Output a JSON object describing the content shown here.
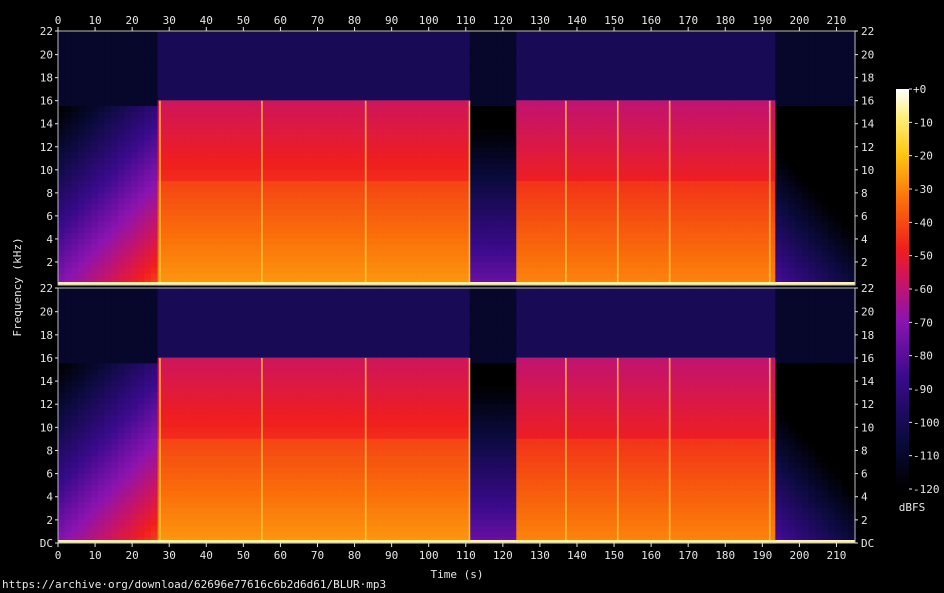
{
  "chart_data": {
    "type": "heatmap",
    "title": "",
    "xlabel": "Time (s)",
    "ylabel": "Frequency (kHz)",
    "colorbar_label": "dBFS",
    "x_range": [
      0,
      215
    ],
    "x_ticks": [
      0,
      10,
      20,
      30,
      40,
      50,
      60,
      70,
      80,
      90,
      100,
      110,
      120,
      130,
      140,
      150,
      160,
      170,
      180,
      190,
      200,
      210
    ],
    "y_range_khz": [
      0,
      22.05
    ],
    "y_ticks_top": [
      "2",
      "4",
      "6",
      "8",
      "10",
      "12",
      "14",
      "16",
      "18",
      "20",
      "22"
    ],
    "y_ticks_bottom": [
      "DC",
      "2",
      "4",
      "6",
      "8",
      "10",
      "12",
      "14",
      "16",
      "18",
      "20",
      "22"
    ],
    "colorbar_range": [
      -120,
      0
    ],
    "colorbar_ticks": [
      "+0",
      "-10",
      "-20",
      "-30",
      "-40",
      "-50",
      "-60",
      "-70",
      "-80",
      "-90",
      "-100",
      "-110",
      "-120"
    ],
    "channels": 2,
    "grid": false,
    "segments": [
      {
        "start": 0,
        "end": 27,
        "cutoff_khz": 15.6,
        "level_db": -85
      },
      {
        "start": 27,
        "end": 55,
        "cutoff_khz": 15.8,
        "level_db": -45
      },
      {
        "start": 55,
        "end": 111,
        "cutoff_khz": 15.8,
        "level_db": -45
      },
      {
        "start": 111,
        "end": 124,
        "cutoff_khz": 15.6,
        "level_db": -90
      },
      {
        "start": 124,
        "end": 193,
        "cutoff_khz": 15.8,
        "level_db": -48
      },
      {
        "start": 193,
        "end": 215,
        "cutoff_khz": 15.6,
        "level_db": -95
      }
    ],
    "transients_s": [
      27.5,
      55,
      83,
      111,
      137,
      151,
      165,
      192
    ]
  },
  "source_url": "https://archive·org/download/62696e77616c6b2d6d61/BLUR·mp3"
}
